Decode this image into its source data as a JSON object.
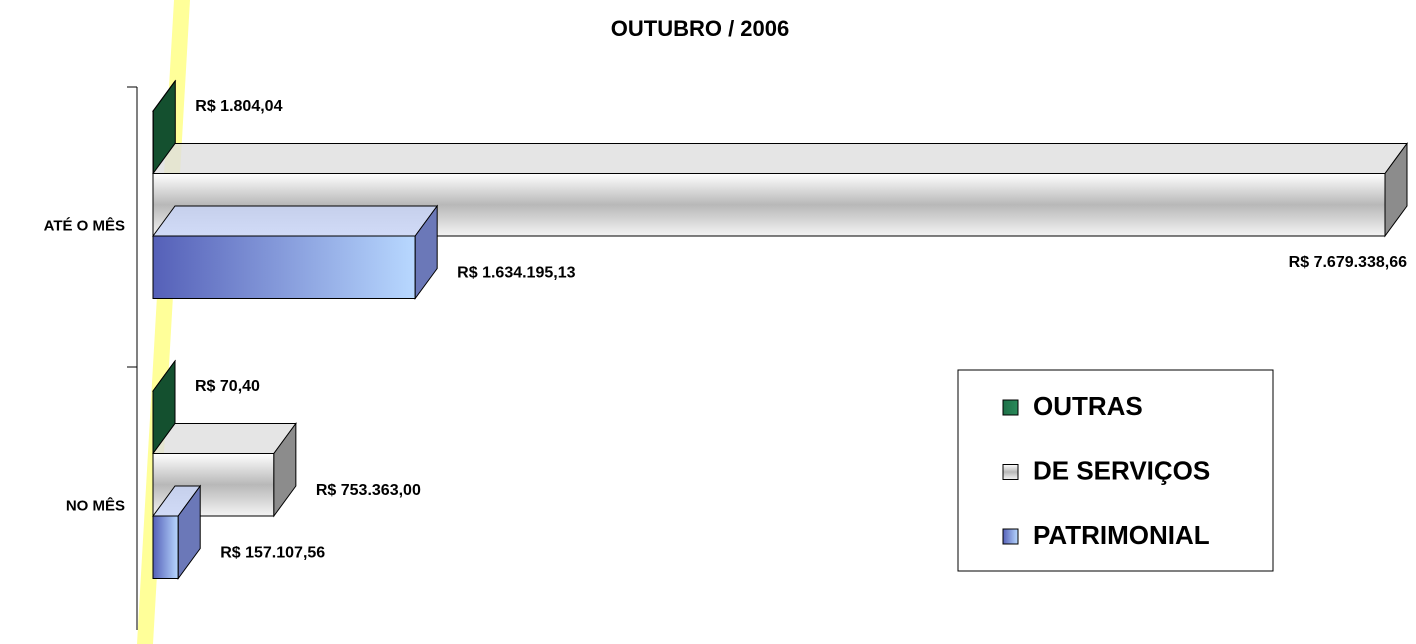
{
  "chart_data": {
    "type": "bar3d_horizontal",
    "title": "OUTUBRO / 2006",
    "categories": [
      "ATÉ O MÊS",
      "NO MÊS"
    ],
    "series": [
      {
        "name": "OUTRAS",
        "color": "#1e7048",
        "values": [
          1804.04,
          70.4
        ],
        "value_labels": [
          "R$ 1.804,04",
          "R$ 70,40"
        ]
      },
      {
        "name": "DE SERVIÇOS",
        "color": "#c8c8c8",
        "values": [
          7679338.66,
          753363.0
        ],
        "value_labels": [
          "R$ 7.679.338,66",
          "R$ 753.363,00"
        ]
      },
      {
        "name": "PATRIMONIAL",
        "color": "#8a9ae0",
        "values": [
          1634195.13,
          157107.56
        ],
        "value_labels": [
          "R$ 1.634.195,13",
          "R$ 157.107,56"
        ]
      }
    ],
    "legend": "right"
  }
}
